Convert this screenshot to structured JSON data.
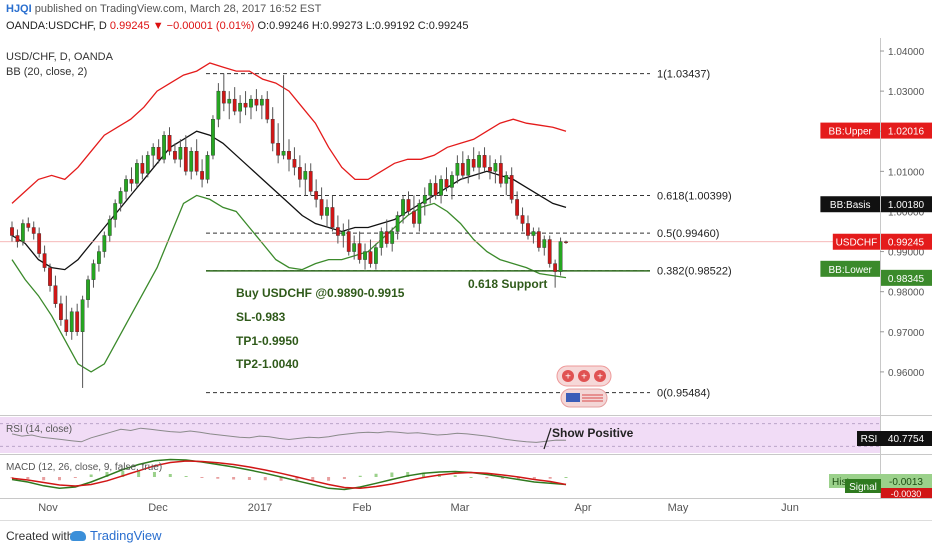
{
  "header": {
    "user": "HJQI",
    "published": " published on TradingView.com, March 28, 2017 16:52 EST",
    "symbol": "OANDA:USDCHF, D",
    "price": "0.99245",
    "change": "▼ −0.00001 (0.01%)",
    "ohlc": "O:0.99246 H:0.99273 L:0.99192 C:0.99245"
  },
  "legend": {
    "symbol": "USD/CHF, D, OANDA",
    "bb": "BB (20, close, 2)"
  },
  "footer": {
    "created": "Created with",
    "brand": "TradingView"
  },
  "colors": {
    "up": "#26a621",
    "down": "#d11616",
    "bb_upper": "#e41b1b",
    "bb_basis": "#111111",
    "bb_lower": "#3b8a2b",
    "rsi_bg": "#f1dcf6",
    "rsi_line": "#8a8a8a",
    "macd_line": "#2f7a1f",
    "signal_line": "#d11616"
  },
  "chart_data": [
    {
      "type": "candlestick",
      "x_ticks": [
        "Nov",
        "Dec",
        "2017",
        "Feb",
        "Mar",
        "Apr",
        "May",
        "Jun"
      ],
      "y_ticks": [
        "1.04000",
        "1.03000",
        "1.02000",
        "1.01000",
        "1.00000",
        "0.99000",
        "0.98000",
        "0.97000",
        "0.96000"
      ],
      "ylim": [
        0.9505,
        1.0415
      ],
      "candles": [
        [
          0.996,
          0.9975,
          0.9925,
          0.994
        ],
        [
          0.994,
          0.9955,
          0.991,
          0.9925
        ],
        [
          0.9925,
          0.998,
          0.9915,
          0.997
        ],
        [
          0.997,
          0.9985,
          0.995,
          0.996
        ],
        [
          0.996,
          0.9975,
          0.993,
          0.9945
        ],
        [
          0.9945,
          0.996,
          0.9885,
          0.9895
        ],
        [
          0.9895,
          0.9915,
          0.985,
          0.986
        ],
        [
          0.986,
          0.987,
          0.98,
          0.9815
        ],
        [
          0.9815,
          0.984,
          0.976,
          0.977
        ],
        [
          0.977,
          0.979,
          0.9715,
          0.973
        ],
        [
          0.973,
          0.979,
          0.969,
          0.97
        ],
        [
          0.97,
          0.976,
          0.968,
          0.975
        ],
        [
          0.975,
          0.977,
          0.969,
          0.97
        ],
        [
          0.97,
          0.979,
          0.956,
          0.978
        ],
        [
          0.978,
          0.984,
          0.976,
          0.983
        ],
        [
          0.983,
          0.988,
          0.981,
          0.987
        ],
        [
          0.987,
          0.9915,
          0.985,
          0.99
        ],
        [
          0.99,
          0.995,
          0.9885,
          0.994
        ],
        [
          0.994,
          0.999,
          0.9925,
          0.998
        ],
        [
          0.998,
          1.003,
          0.996,
          1.002
        ],
        [
          1.002,
          1.006,
          1.0,
          1.005
        ],
        [
          1.005,
          1.009,
          1.003,
          1.008
        ],
        [
          1.008,
          1.011,
          1.005,
          1.007
        ],
        [
          1.007,
          1.013,
          1.006,
          1.012
        ],
        [
          1.012,
          1.014,
          1.008,
          1.0095
        ],
        [
          1.0095,
          1.015,
          1.0085,
          1.014
        ],
        [
          1.014,
          1.017,
          1.011,
          1.016
        ],
        [
          1.016,
          1.018,
          1.012,
          1.013
        ],
        [
          1.013,
          1.02,
          1.012,
          1.019
        ],
        [
          1.019,
          1.021,
          1.014,
          1.015
        ],
        [
          1.015,
          1.017,
          1.012,
          1.013
        ],
        [
          1.013,
          1.018,
          1.011,
          1.016
        ],
        [
          1.016,
          1.019,
          1.009,
          1.01
        ],
        [
          1.01,
          1.016,
          1.008,
          1.015
        ],
        [
          1.015,
          1.018,
          1.009,
          1.01
        ],
        [
          1.01,
          1.013,
          1.006,
          1.008
        ],
        [
          1.008,
          1.015,
          1.007,
          1.014
        ],
        [
          1.014,
          1.024,
          1.013,
          1.023
        ],
        [
          1.023,
          1.032,
          1.021,
          1.03
        ],
        [
          1.03,
          1.0344,
          1.025,
          1.027
        ],
        [
          1.027,
          1.03,
          1.023,
          1.028
        ],
        [
          1.028,
          1.031,
          1.024,
          1.025
        ],
        [
          1.025,
          1.029,
          1.022,
          1.027
        ],
        [
          1.027,
          1.03,
          1.024,
          1.026
        ],
        [
          1.026,
          1.029,
          1.023,
          1.028
        ],
        [
          1.028,
          1.0305,
          1.025,
          1.0265
        ],
        [
          1.0265,
          1.029,
          1.023,
          1.028
        ],
        [
          1.028,
          1.03,
          1.022,
          1.023
        ],
        [
          1.023,
          1.026,
          1.015,
          1.017
        ],
        [
          1.017,
          1.022,
          1.012,
          1.014
        ],
        [
          1.014,
          1.034,
          1.013,
          1.015
        ],
        [
          1.015,
          1.018,
          1.01,
          1.013
        ],
        [
          1.013,
          1.016,
          1.009,
          1.011
        ],
        [
          1.011,
          1.014,
          1.006,
          1.008
        ],
        [
          1.008,
          1.012,
          1.004,
          1.01
        ],
        [
          1.01,
          1.012,
          1.004,
          1.005
        ],
        [
          1.005,
          1.008,
          1.001,
          1.003
        ],
        [
          1.003,
          1.006,
          0.998,
          0.999
        ],
        [
          0.999,
          1.003,
          0.996,
          1.001
        ],
        [
          1.001,
          1.004,
          0.995,
          0.996
        ],
        [
          0.996,
          0.999,
          0.992,
          0.994
        ],
        [
          0.994,
          0.997,
          0.991,
          0.995
        ],
        [
          0.995,
          0.998,
          0.989,
          0.99
        ],
        [
          0.99,
          0.994,
          0.988,
          0.992
        ],
        [
          0.992,
          0.995,
          0.987,
          0.988
        ],
        [
          0.988,
          0.992,
          0.9855,
          0.99
        ],
        [
          0.99,
          0.993,
          0.986,
          0.987
        ],
        [
          0.987,
          0.992,
          0.9855,
          0.991
        ],
        [
          0.991,
          0.996,
          0.989,
          0.995
        ],
        [
          0.995,
          0.998,
          0.991,
          0.992
        ],
        [
          0.992,
          0.996,
          0.99,
          0.995
        ],
        [
          0.995,
          1.0,
          0.993,
          0.999
        ],
        [
          0.999,
          1.004,
          0.997,
          1.003
        ],
        [
          1.003,
          1.005,
          0.999,
          1.0
        ],
        [
          1.0,
          1.004,
          0.996,
          0.997
        ],
        [
          0.997,
          1.003,
          0.995,
          1.002
        ],
        [
          1.002,
          1.006,
          0.999,
          1.004
        ],
        [
          1.004,
          1.008,
          1.002,
          1.007
        ],
        [
          1.007,
          1.009,
          1.003,
          1.004
        ],
        [
          1.004,
          1.009,
          1.002,
          1.008
        ],
        [
          1.008,
          1.011,
          1.005,
          1.006
        ],
        [
          1.006,
          1.01,
          1.003,
          1.009
        ],
        [
          1.009,
          1.014,
          1.007,
          1.012
        ],
        [
          1.012,
          1.015,
          1.008,
          1.009
        ],
        [
          1.009,
          1.014,
          1.007,
          1.013
        ],
        [
          1.013,
          1.016,
          1.01,
          1.011
        ],
        [
          1.011,
          1.015,
          1.008,
          1.014
        ],
        [
          1.014,
          1.016,
          1.01,
          1.011
        ],
        [
          1.011,
          1.014,
          1.008,
          1.01
        ],
        [
          1.01,
          1.013,
          1.007,
          1.012
        ],
        [
          1.012,
          1.014,
          1.006,
          1.007
        ],
        [
          1.007,
          1.01,
          1.004,
          1.009
        ],
        [
          1.009,
          1.011,
          1.002,
          1.003
        ],
        [
          1.003,
          1.005,
          0.998,
          0.999
        ],
        [
          0.999,
          1.001,
          0.995,
          0.997
        ],
        [
          0.997,
          0.999,
          0.993,
          0.994
        ],
        [
          0.994,
          0.996,
          0.992,
          0.995
        ],
        [
          0.995,
          0.996,
          0.99,
          0.991
        ],
        [
          0.991,
          0.994,
          0.989,
          0.993
        ],
        [
          0.993,
          0.994,
          0.986,
          0.987
        ],
        [
          0.987,
          0.988,
          0.981,
          0.985
        ],
        [
          0.985,
          0.9935,
          0.984,
          0.9925
        ],
        [
          0.99246,
          0.99273,
          0.99192,
          0.99245
        ]
      ],
      "bb_upper": [
        1.002,
        1.005,
        1.008,
        1.009,
        1.008,
        1.011,
        1.015,
        1.019,
        1.021,
        1.023,
        1.026,
        1.03,
        1.032,
        1.034,
        1.035,
        1.037,
        1.036,
        1.035,
        1.035,
        1.033,
        1.032,
        1.03,
        1.026,
        1.022,
        1.016,
        1.011,
        1.008,
        1.008,
        1.01,
        1.012,
        1.013,
        1.013,
        1.014,
        1.016,
        1.017,
        1.018,
        1.02,
        1.022,
        1.023,
        1.022,
        1.0215,
        1.021,
        1.02
      ],
      "bb_basis": [
        0.994,
        0.992,
        0.988,
        0.986,
        0.9855,
        0.988,
        0.992,
        0.996,
        1.0,
        1.004,
        1.008,
        1.012,
        1.016,
        1.018,
        1.02,
        1.019,
        1.017,
        1.014,
        1.011,
        1.008,
        1.005,
        1.002,
        0.999,
        0.997,
        0.996,
        0.995,
        0.996,
        0.996,
        0.997,
        0.998,
        1.0,
        1.002,
        1.004,
        1.006,
        1.008,
        1.009,
        1.01,
        1.009,
        1.008,
        1.006,
        1.004,
        1.002,
        1.001
      ],
      "bb_lower": [
        0.988,
        0.983,
        0.979,
        0.974,
        0.968,
        0.962,
        0.96,
        0.962,
        0.968,
        0.974,
        0.98,
        0.986,
        0.994,
        1.002,
        1.004,
        1.003,
        1.001,
        1.0,
        0.996,
        0.992,
        0.988,
        0.986,
        0.9855,
        0.987,
        0.988,
        0.988,
        0.989,
        0.99,
        0.993,
        0.996,
        0.999,
        1.001,
        1.002,
        1.0,
        0.997,
        0.993,
        0.99,
        0.988,
        0.987,
        0.986,
        0.9845,
        0.984,
        0.9835
      ],
      "fib_levels": [
        {
          "label": "1(1.03437)",
          "value": 1.03437
        },
        {
          "label": "0.618(1.00399)",
          "value": 1.00399
        },
        {
          "label": "0.5(0.99460)",
          "value": 0.9946
        },
        {
          "label": "0.382(0.98522)",
          "value": 0.98522
        },
        {
          "label": "0(0.95484)",
          "value": 0.95484
        }
      ],
      "support": {
        "value": 0.9852,
        "label": "0.618 Support"
      },
      "annotations": [
        "Buy USDCHF @0.9890-0.9915",
        "SL-0.983",
        "TP1-0.9950",
        "TP2-1.0040"
      ],
      "price_labels": [
        {
          "label": "BB:Upper",
          "value": "1.02016",
          "y": 1.02016,
          "color": "#e41b1b"
        },
        {
          "label": "BB:Basis",
          "value": "1.00180",
          "y": 1.0018,
          "color": "#111111"
        },
        {
          "label": "USDCHF",
          "value": "0.99245",
          "y": 0.99245,
          "color": "#e41b1b"
        },
        {
          "label": "BB:Lower",
          "value": "",
          "y": 0.9857,
          "color": "#3b8a2b"
        },
        {
          "label": "",
          "value": "0.98345",
          "y": 0.98345,
          "color": "#3b8a2b"
        }
      ]
    },
    {
      "type": "line",
      "legend": "RSI (14, close)",
      "label": "RSI",
      "value": "40.7754",
      "annotation": "Show Positive",
      "values": [
        52,
        48,
        50,
        46,
        44,
        42,
        40,
        38,
        45,
        50,
        55,
        60,
        58,
        62,
        60,
        58,
        56,
        55,
        57,
        55,
        52,
        50,
        48,
        46,
        45,
        48,
        47,
        44,
        42,
        44,
        46,
        45,
        47,
        50,
        52,
        54,
        55,
        54,
        56,
        55,
        53,
        54,
        52,
        50,
        51,
        53,
        52,
        50,
        48,
        45,
        42,
        40,
        38,
        37,
        39,
        41,
        40.8
      ],
      "ylim": [
        20,
        80
      ]
    },
    {
      "type": "macd",
      "legend": "MACD (12, 26, close, 9, false, true)",
      "labels": [
        "Hist",
        "-0.0013",
        "Signal",
        "-0.0030"
      ],
      "macd": [
        -0.001,
        -0.002,
        -0.0035,
        -0.0045,
        -0.004,
        -0.002,
        0.0005,
        0.003,
        0.005,
        0.0065,
        0.007,
        0.0068,
        0.006,
        0.005,
        0.004,
        0.0028,
        0.0015,
        0.0,
        -0.0015,
        -0.003,
        -0.0045,
        -0.005,
        -0.004,
        -0.0025,
        -0.001,
        0.0005,
        0.0015,
        0.002,
        0.0022,
        0.0018,
        0.001,
        0.0,
        -0.001,
        -0.002,
        -0.0025,
        -0.003
      ],
      "signal": [
        -0.0005,
        -0.0012,
        -0.0022,
        -0.0032,
        -0.0036,
        -0.003,
        -0.0015,
        0.0005,
        0.0025,
        0.0045,
        0.0058,
        0.0064,
        0.0062,
        0.0057,
        0.005,
        0.004,
        0.0028,
        0.0015,
        0.0,
        -0.0015,
        -0.003,
        -0.0042,
        -0.0045,
        -0.0038,
        -0.0028,
        -0.0015,
        -0.0002,
        0.0008,
        0.0015,
        0.0018,
        0.0015,
        0.0008,
        0.0,
        -0.001,
        -0.0018,
        -0.003
      ],
      "ylim": [
        -0.008,
        0.008
      ]
    }
  ]
}
